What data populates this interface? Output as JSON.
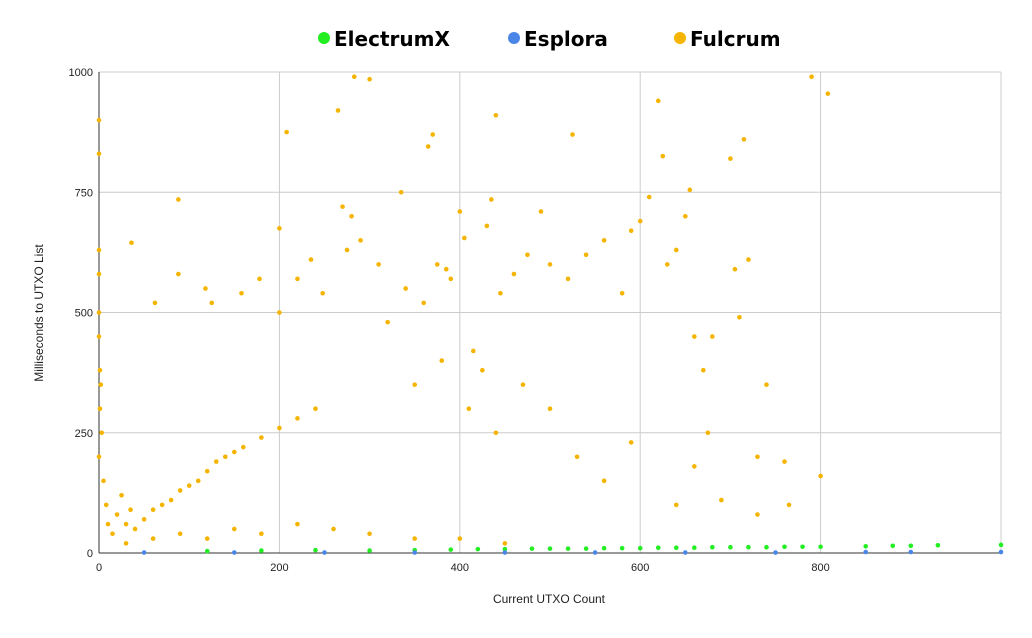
{
  "chart_data": {
    "type": "scatter",
    "xlabel": "Current UTXO Count",
    "ylabel": "Milliseconds to UTXO List",
    "xlim": [
      0,
      1000
    ],
    "ylim": [
      0,
      1000
    ],
    "x_ticks": [
      "0",
      "200",
      "400",
      "600",
      "800"
    ],
    "y_ticks": [
      "0",
      "250",
      "500",
      "750",
      "1000"
    ],
    "grid": true,
    "legend_position": "top",
    "series": [
      {
        "name": "ElectrumX",
        "color": "#22ee22",
        "points": [
          [
            120,
            4
          ],
          [
            180,
            5
          ],
          [
            240,
            6
          ],
          [
            300,
            5
          ],
          [
            350,
            6
          ],
          [
            390,
            7
          ],
          [
            420,
            8
          ],
          [
            450,
            8
          ],
          [
            480,
            9
          ],
          [
            500,
            9
          ],
          [
            520,
            9
          ],
          [
            540,
            9
          ],
          [
            560,
            10
          ],
          [
            580,
            10
          ],
          [
            600,
            10
          ],
          [
            620,
            11
          ],
          [
            640,
            11
          ],
          [
            660,
            11
          ],
          [
            680,
            12
          ],
          [
            700,
            12
          ],
          [
            720,
            12
          ],
          [
            740,
            12
          ],
          [
            760,
            13
          ],
          [
            780,
            13
          ],
          [
            800,
            13
          ],
          [
            850,
            14
          ],
          [
            880,
            15
          ],
          [
            900,
            15
          ],
          [
            930,
            16
          ],
          [
            1000,
            17
          ]
        ]
      },
      {
        "name": "Esplora",
        "color": "#4a86e8",
        "points": [
          [
            50,
            1
          ],
          [
            150,
            1
          ],
          [
            250,
            1
          ],
          [
            350,
            1
          ],
          [
            450,
            1
          ],
          [
            550,
            1
          ],
          [
            650,
            1
          ],
          [
            750,
            1
          ],
          [
            850,
            2
          ],
          [
            900,
            2
          ],
          [
            1000,
            2
          ]
        ]
      },
      {
        "name": "Fulcrum",
        "color": "#f4b400",
        "points": [
          [
            0,
            900
          ],
          [
            0,
            830
          ],
          [
            0,
            630
          ],
          [
            0,
            580
          ],
          [
            0,
            500
          ],
          [
            0,
            450
          ],
          [
            1,
            380
          ],
          [
            2,
            350
          ],
          [
            1,
            300
          ],
          [
            3,
            250
          ],
          [
            0,
            200
          ],
          [
            5,
            150
          ],
          [
            8,
            100
          ],
          [
            10,
            60
          ],
          [
            15,
            40
          ],
          [
            20,
            80
          ],
          [
            25,
            120
          ],
          [
            30,
            60
          ],
          [
            35,
            90
          ],
          [
            40,
            50
          ],
          [
            50,
            70
          ],
          [
            60,
            90
          ],
          [
            70,
            100
          ],
          [
            80,
            110
          ],
          [
            90,
            130
          ],
          [
            100,
            140
          ],
          [
            110,
            150
          ],
          [
            120,
            170
          ],
          [
            130,
            190
          ],
          [
            140,
            200
          ],
          [
            150,
            210
          ],
          [
            160,
            220
          ],
          [
            180,
            240
          ],
          [
            200,
            260
          ],
          [
            220,
            280
          ],
          [
            240,
            300
          ],
          [
            30,
            20
          ],
          [
            60,
            30
          ],
          [
            90,
            40
          ],
          [
            120,
            30
          ],
          [
            150,
            50
          ],
          [
            180,
            40
          ],
          [
            220,
            60
          ],
          [
            260,
            50
          ],
          [
            300,
            40
          ],
          [
            350,
            30
          ],
          [
            400,
            30
          ],
          [
            450,
            20
          ],
          [
            36,
            645
          ],
          [
            62,
            520
          ],
          [
            88,
            735
          ],
          [
            88,
            580
          ],
          [
            118,
            550
          ],
          [
            125,
            520
          ],
          [
            158,
            540
          ],
          [
            178,
            570
          ],
          [
            200,
            675
          ],
          [
            200,
            500
          ],
          [
            208,
            875
          ],
          [
            220,
            570
          ],
          [
            235,
            610
          ],
          [
            248,
            540
          ],
          [
            265,
            920
          ],
          [
            270,
            720
          ],
          [
            275,
            630
          ],
          [
            280,
            700
          ],
          [
            283,
            990
          ],
          [
            290,
            650
          ],
          [
            300,
            985
          ],
          [
            310,
            600
          ],
          [
            320,
            480
          ],
          [
            335,
            750
          ],
          [
            340,
            550
          ],
          [
            360,
            520
          ],
          [
            365,
            845
          ],
          [
            370,
            870
          ],
          [
            375,
            600
          ],
          [
            385,
            590
          ],
          [
            390,
            570
          ],
          [
            400,
            710
          ],
          [
            405,
            655
          ],
          [
            415,
            420
          ],
          [
            425,
            380
          ],
          [
            430,
            680
          ],
          [
            435,
            735
          ],
          [
            440,
            910
          ],
          [
            445,
            540
          ],
          [
            460,
            580
          ],
          [
            475,
            620
          ],
          [
            490,
            710
          ],
          [
            500,
            600
          ],
          [
            520,
            570
          ],
          [
            525,
            870
          ],
          [
            540,
            620
          ],
          [
            560,
            650
          ],
          [
            580,
            540
          ],
          [
            590,
            670
          ],
          [
            600,
            690
          ],
          [
            610,
            740
          ],
          [
            620,
            940
          ],
          [
            625,
            825
          ],
          [
            630,
            600
          ],
          [
            640,
            630
          ],
          [
            650,
            700
          ],
          [
            655,
            755
          ],
          [
            660,
            450
          ],
          [
            670,
            380
          ],
          [
            675,
            250
          ],
          [
            680,
            450
          ],
          [
            700,
            820
          ],
          [
            705,
            590
          ],
          [
            715,
            860
          ],
          [
            720,
            610
          ],
          [
            730,
            200
          ],
          [
            740,
            350
          ],
          [
            760,
            190
          ],
          [
            765,
            100
          ],
          [
            790,
            990
          ],
          [
            800,
            160
          ],
          [
            808,
            955
          ],
          [
            350,
            350
          ],
          [
            380,
            400
          ],
          [
            410,
            300
          ],
          [
            440,
            250
          ],
          [
            470,
            350
          ],
          [
            500,
            300
          ],
          [
            530,
            200
          ],
          [
            560,
            150
          ],
          [
            590,
            230
          ],
          [
            640,
            100
          ],
          [
            660,
            180
          ],
          [
            690,
            110
          ],
          [
            710,
            490
          ],
          [
            730,
            80
          ]
        ]
      }
    ]
  }
}
